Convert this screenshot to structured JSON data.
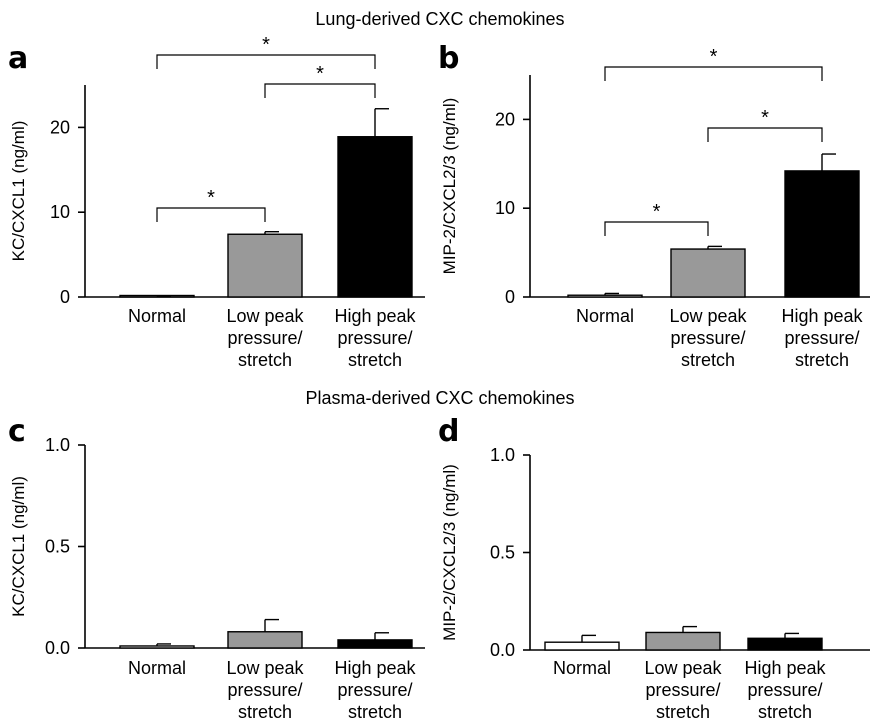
{
  "figure": {
    "section_titles": [
      "Lung-derived CXC chemokines",
      "Plasma-derived CXC chemokines"
    ]
  },
  "colors": {
    "Normal": "#ffffff",
    "Low peak pressure/stretch": "#999999",
    "High peak pressure/stretch": "#000000"
  },
  "chart_data": [
    {
      "panel": "a",
      "type": "bar",
      "title": "",
      "ylabel": "KC/CXCL1 (ng/ml)",
      "ylim": [
        0,
        25
      ],
      "yticks": [
        0,
        10,
        20
      ],
      "categories": [
        [
          "Normal"
        ],
        [
          "Low peak",
          "pressure/",
          "stretch"
        ],
        [
          "High peak",
          "pressure/",
          "stretch"
        ]
      ],
      "category_names": [
        "Normal",
        "Low peak pressure/stretch",
        "High peak pressure/stretch"
      ],
      "values": [
        0.1,
        7.4,
        18.9
      ],
      "errors": [
        0.05,
        0.3,
        3.3
      ],
      "significance": [
        {
          "from": 0,
          "to": 1,
          "label": "*"
        },
        {
          "from": 1,
          "to": 2,
          "label": "*"
        },
        {
          "from": 0,
          "to": 2,
          "label": "*"
        }
      ]
    },
    {
      "panel": "b",
      "type": "bar",
      "title": "",
      "ylabel": "MIP-2/CXCL2/3 (ng/ml)",
      "ylim": [
        0,
        25
      ],
      "yticks": [
        0,
        10,
        20
      ],
      "categories": [
        [
          "Normal"
        ],
        [
          "Low peak",
          "pressure/",
          "stretch"
        ],
        [
          "High peak",
          "pressure/",
          "stretch"
        ]
      ],
      "category_names": [
        "Normal",
        "Low peak pressure/stretch",
        "High peak pressure/stretch"
      ],
      "values": [
        0.2,
        5.4,
        14.2
      ],
      "errors": [
        0.2,
        0.3,
        1.9
      ],
      "significance": [
        {
          "from": 0,
          "to": 1,
          "label": "*"
        },
        {
          "from": 1,
          "to": 2,
          "label": "*"
        },
        {
          "from": 0,
          "to": 2,
          "label": "*"
        }
      ]
    },
    {
      "panel": "c",
      "type": "bar",
      "title": "",
      "ylabel": "KC/CXCL1 (ng/ml)",
      "ylim": [
        0,
        1.0
      ],
      "yticks": [
        "0.0",
        "0.5",
        "1.0"
      ],
      "categories": [
        [
          "Normal"
        ],
        [
          "Low peak",
          "pressure/",
          "stretch"
        ],
        [
          "High peak",
          "pressure/",
          "stretch"
        ]
      ],
      "category_names": [
        "Normal",
        "Low peak pressure/stretch",
        "High peak pressure/stretch"
      ],
      "values": [
        0.01,
        0.08,
        0.04
      ],
      "errors": [
        0.01,
        0.06,
        0.035
      ],
      "significance": []
    },
    {
      "panel": "d",
      "type": "bar",
      "title": "",
      "ylabel": "MIP-2/CXCL2/3 (ng/ml)",
      "ylim": [
        0,
        1.0
      ],
      "yticks": [
        "0.0",
        "0.5",
        "1.0"
      ],
      "categories": [
        [
          "Normal"
        ],
        [
          "Low peak",
          "pressure/",
          "stretch"
        ],
        [
          "High peak",
          "pressure/",
          "stretch"
        ]
      ],
      "category_names": [
        "Normal",
        "Low peak pressure/stretch",
        "High peak pressure/stretch"
      ],
      "values": [
        0.04,
        0.09,
        0.06
      ],
      "errors": [
        0.035,
        0.03,
        0.025
      ],
      "significance": []
    }
  ]
}
